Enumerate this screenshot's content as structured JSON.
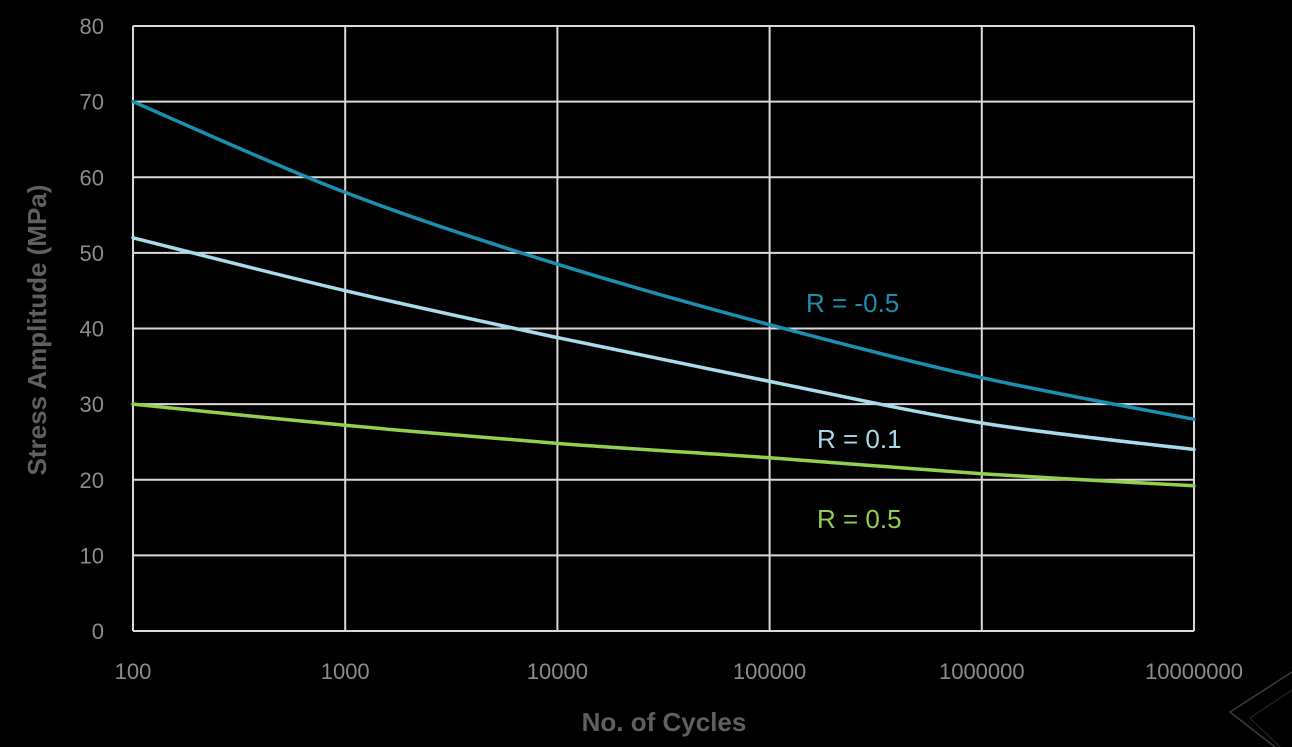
{
  "chart_data": {
    "type": "line",
    "xlabel": "No. of Cycles",
    "ylabel": "Stress Amplitude (MPa)",
    "x_scale": "log",
    "xlim": [
      100,
      10000000
    ],
    "ylim": [
      0,
      80
    ],
    "x_ticks": [
      "100",
      "1000",
      "10000",
      "100000",
      "1000000",
      "10000000"
    ],
    "y_ticks": [
      "0",
      "10",
      "20",
      "30",
      "40",
      "50",
      "60",
      "70",
      "80"
    ],
    "grid": true,
    "series": [
      {
        "name": "R = -0.5",
        "color": "#1b8fb0",
        "x": [
          100,
          1000,
          10000,
          100000,
          1000000,
          10000000
        ],
        "y": [
          70,
          58,
          48.5,
          40.5,
          33.5,
          28
        ]
      },
      {
        "name": "R = 0.1",
        "color": "#a8dcea",
        "x": [
          100,
          1000,
          10000,
          100000,
          1000000,
          10000000
        ],
        "y": [
          52,
          45,
          38.8,
          33,
          27.5,
          24
        ]
      },
      {
        "name": "R = 0.5",
        "color": "#92d050",
        "x": [
          100,
          1000,
          10000,
          100000,
          1000000,
          10000000
        ],
        "y": [
          30,
          27.2,
          24.8,
          22.9,
          20.8,
          19.2
        ]
      }
    ]
  }
}
